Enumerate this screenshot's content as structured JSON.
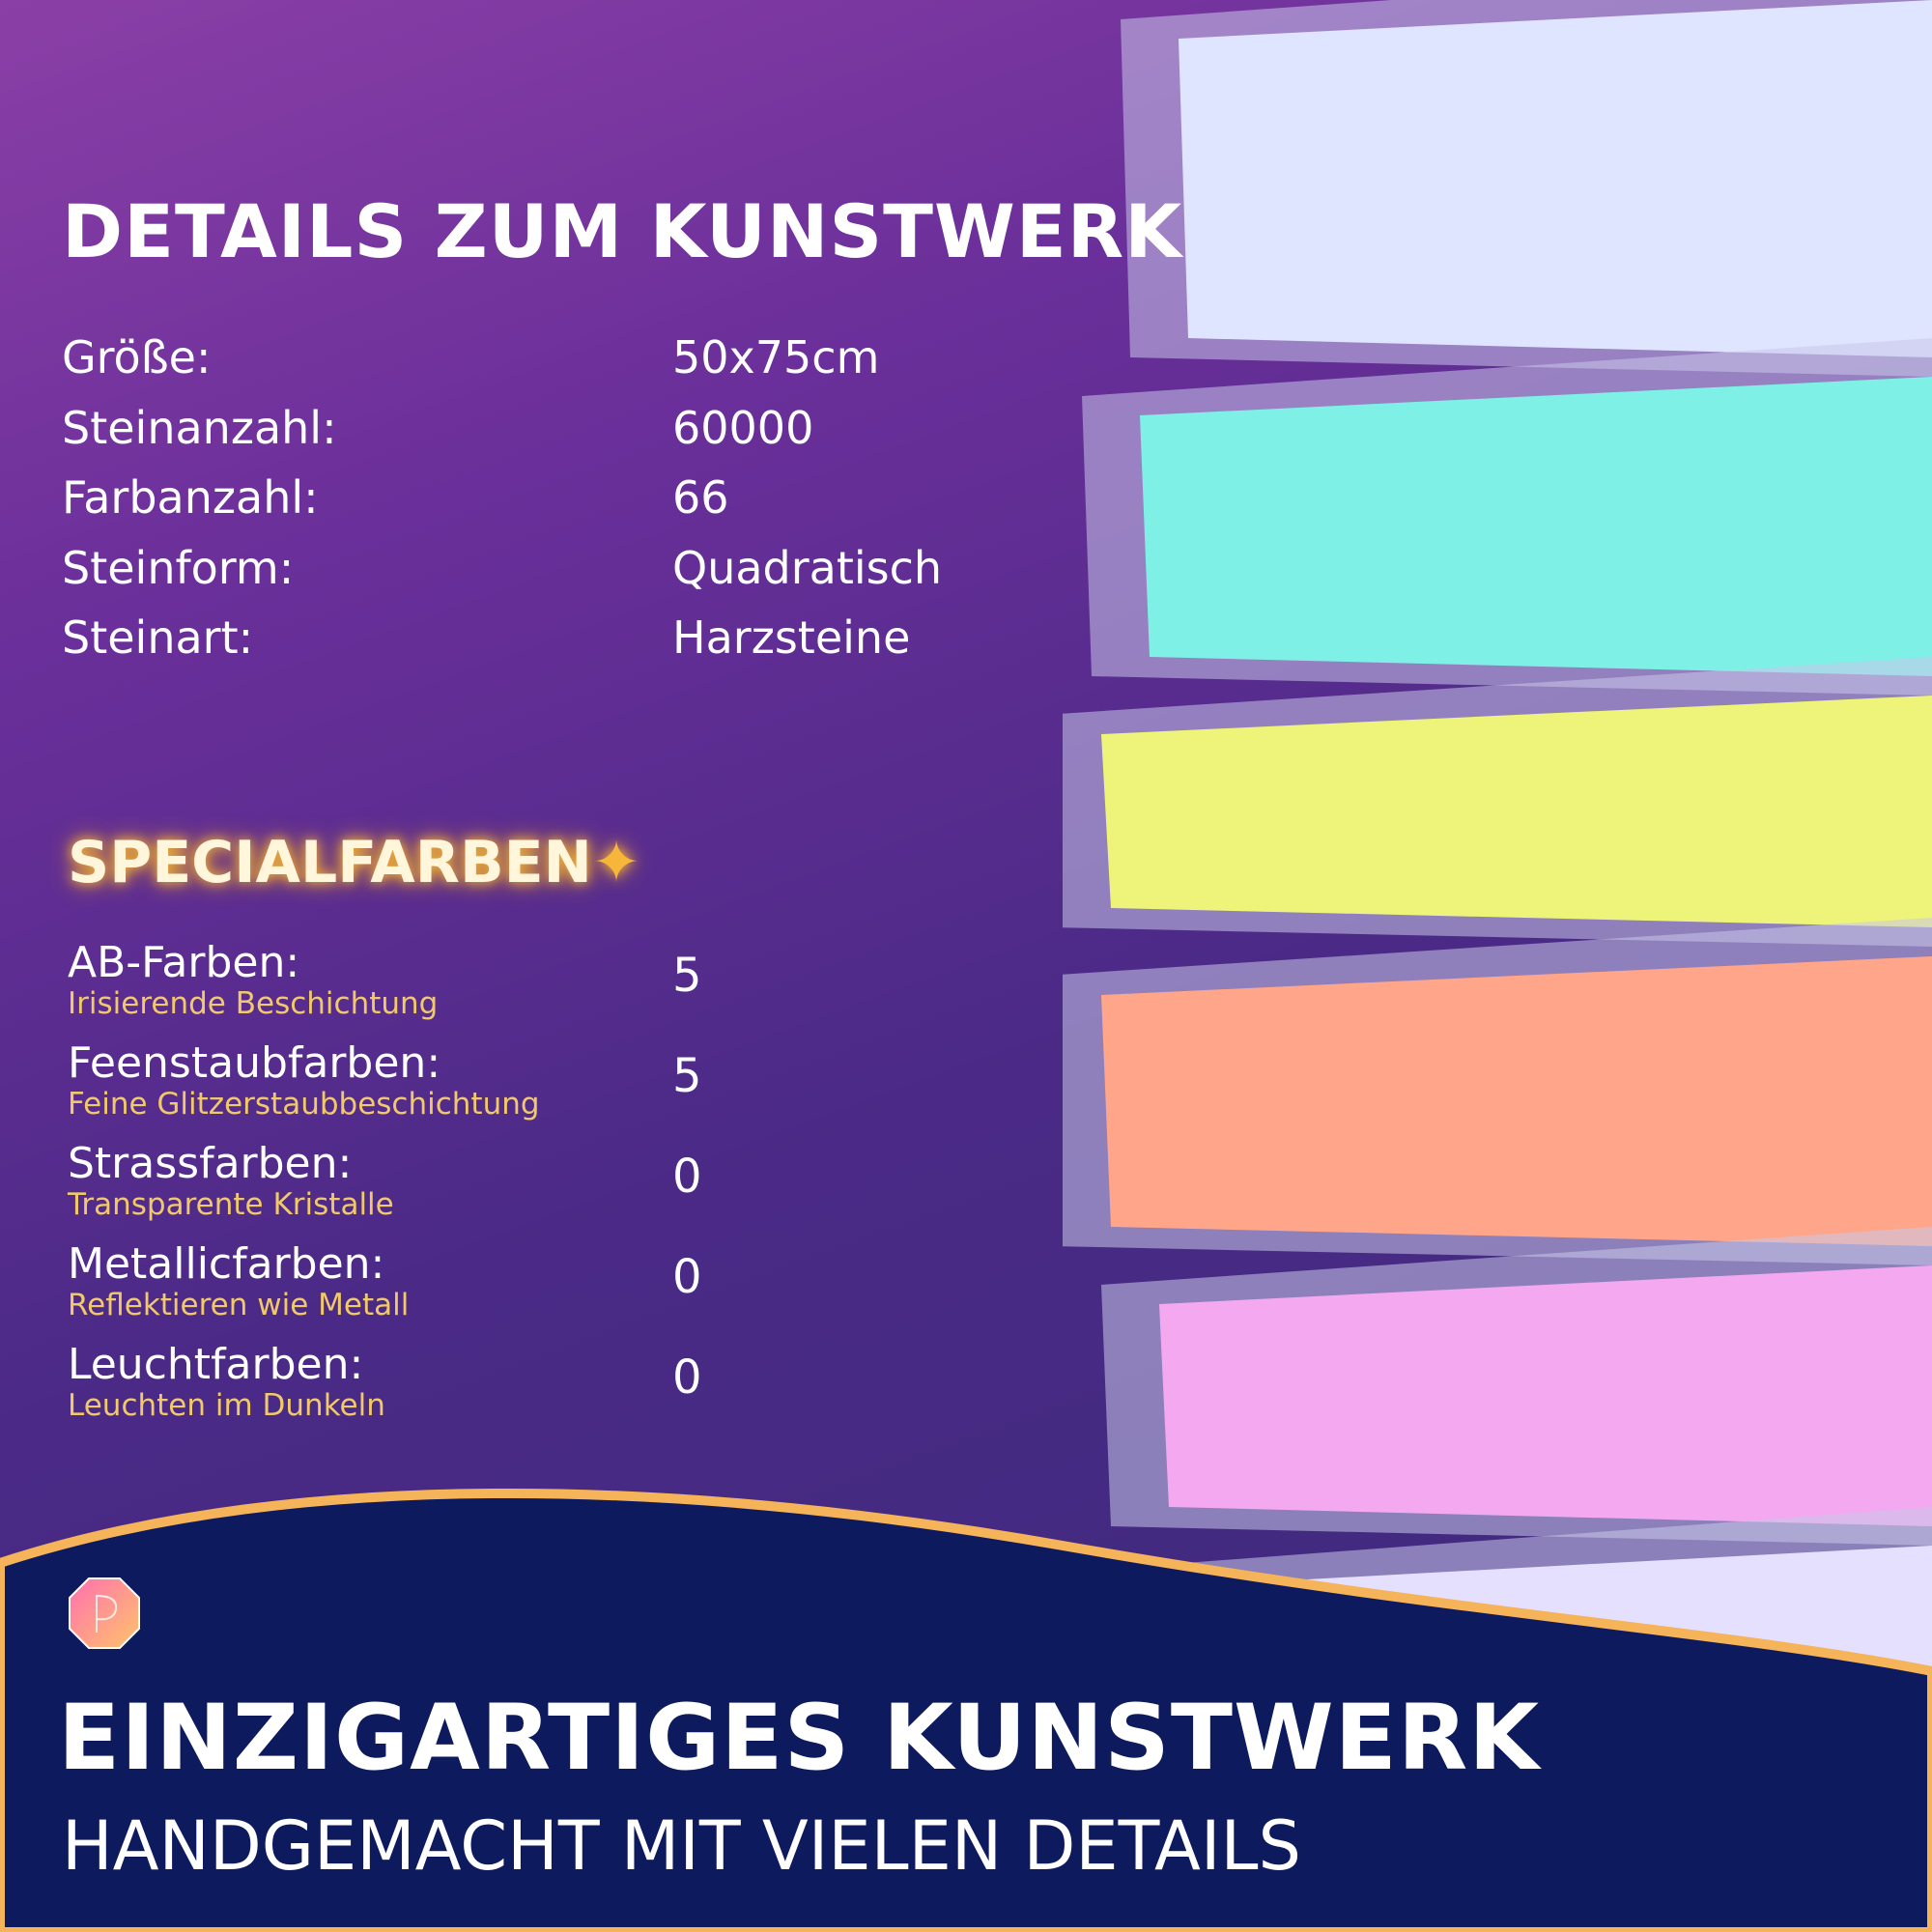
{
  "details": {
    "title": "DETAILS ZUM KUNSTWERK",
    "rows": [
      {
        "label": "Größe:",
        "value": "50x75cm"
      },
      {
        "label": "Steinanzahl:",
        "value": "60000"
      },
      {
        "label": "Farbanzahl:",
        "value": "66"
      },
      {
        "label": "Steinform:",
        "value": "Quadratisch"
      },
      {
        "label": "Steinart:",
        "value": "Harzsteine"
      }
    ]
  },
  "special": {
    "title": "SPECIALFARBEN",
    "title_icon": "sparkles-icon",
    "items": [
      {
        "label": "AB-Farben:",
        "subtitle": "Irisierende Beschichtung",
        "value": "5"
      },
      {
        "label": "Feenstaubfarben:",
        "subtitle": "Feine Glitzerstaubbeschichtung",
        "value": "5"
      },
      {
        "label": "Strassfarben:",
        "subtitle": "Transparente Kristalle",
        "value": "0"
      },
      {
        "label": "Metallicfarben:",
        "subtitle": "Reflektieren wie Metall",
        "value": "0"
      },
      {
        "label": "Leuchtfarben:",
        "subtitle": "Leuchten im Dunkeln",
        "value": "0"
      }
    ]
  },
  "footer": {
    "headline": "EINZIGARTIGES KUNSTWERK",
    "subheadline": "HANDGEMACHT MIT VIELEN DETAILS"
  },
  "colors": {
    "accent_gold": "#f2c96a",
    "navy": "#0d1a5e",
    "wave_border": "#f5b35a"
  },
  "bead_colors": [
    "#dfe4ff",
    "#7ff0e6",
    "#eef37a",
    "#ffa68a",
    "#f3a8f0",
    "#e6e0ff"
  ]
}
